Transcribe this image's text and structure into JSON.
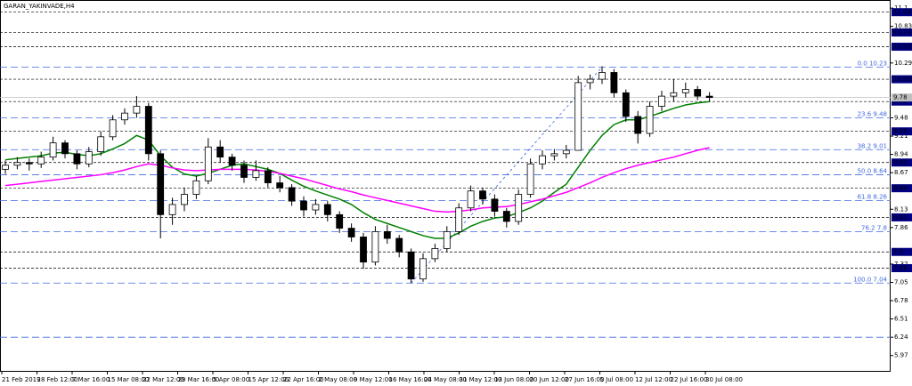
{
  "chart_data": {
    "type": "candlestick",
    "title": "GARAN_YAKINVADE,H4",
    "x_labels": [
      "21 Feb 2019",
      "28 Feb 12:00",
      "7 Mar 16:00",
      "15 Mar 08:00",
      "22 Mar 12:00",
      "29 Mar 16:00",
      "5 Apr 08:00",
      "15 Apr 12:00",
      "22 Apr 16:00",
      "2 May 08:00",
      "9 May 12:00",
      "16 May 16:00",
      "24 May 08:00",
      "31 May 12:00",
      "13 Jun 08:00",
      "20 Jun 12:00",
      "27 Jun 16:00",
      "5 Jul 08:00",
      "12 Jul 12:00",
      "22 Jul 16:00",
      "30 Jul 08:00"
    ],
    "ylim": [
      5.73,
      11.22
    ],
    "yticks": [
      11.1,
      10.83,
      10.29,
      9.48,
      9.21,
      8.94,
      8.67,
      8.13,
      7.86,
      7.32,
      7.05,
      6.78,
      6.51,
      6.24,
      5.97
    ],
    "up_color": "#ffffff",
    "down_color": "#000000",
    "candles": [
      [
        8.72,
        8.85,
        8.65,
        8.78
      ],
      [
        8.78,
        8.9,
        8.72,
        8.82
      ],
      [
        8.82,
        8.88,
        8.7,
        8.8
      ],
      [
        8.8,
        8.98,
        8.74,
        8.9
      ],
      [
        8.9,
        9.2,
        8.85,
        9.11
      ],
      [
        9.11,
        9.15,
        8.88,
        8.95
      ],
      [
        8.95,
        9.0,
        8.72,
        8.8
      ],
      [
        8.8,
        9.05,
        8.75,
        8.98
      ],
      [
        8.98,
        9.28,
        8.92,
        9.2
      ],
      [
        9.2,
        9.52,
        9.15,
        9.45
      ],
      [
        9.45,
        9.62,
        9.38,
        9.55
      ],
      [
        9.55,
        9.8,
        9.48,
        9.65
      ],
      [
        9.65,
        9.7,
        8.85,
        8.95
      ],
      [
        8.95,
        9.0,
        7.7,
        8.05
      ],
      [
        8.05,
        8.3,
        7.9,
        8.2
      ],
      [
        8.2,
        8.45,
        8.1,
        8.35
      ],
      [
        8.35,
        8.62,
        8.28,
        8.55
      ],
      [
        8.55,
        9.18,
        8.5,
        9.05
      ],
      [
        9.05,
        9.15,
        8.82,
        8.9
      ],
      [
        8.9,
        8.95,
        8.7,
        8.78
      ],
      [
        8.78,
        8.85,
        8.52,
        8.6
      ],
      [
        8.6,
        8.85,
        8.55,
        8.7
      ],
      [
        8.7,
        8.75,
        8.45,
        8.52
      ],
      [
        8.52,
        8.62,
        8.38,
        8.45
      ],
      [
        8.45,
        8.5,
        8.18,
        8.25
      ],
      [
        8.25,
        8.32,
        8.02,
        8.12
      ],
      [
        8.12,
        8.28,
        8.05,
        8.2
      ],
      [
        8.2,
        8.25,
        7.95,
        8.05
      ],
      [
        8.05,
        8.1,
        7.78,
        7.85
      ],
      [
        7.85,
        7.92,
        7.65,
        7.72
      ],
      [
        7.72,
        7.78,
        7.25,
        7.35
      ],
      [
        7.35,
        7.88,
        7.3,
        7.8
      ],
      [
        7.8,
        7.9,
        7.62,
        7.7
      ],
      [
        7.7,
        7.75,
        7.42,
        7.5
      ],
      [
        7.5,
        7.55,
        7.04,
        7.1
      ],
      [
        7.1,
        7.48,
        7.06,
        7.4
      ],
      [
        7.4,
        7.62,
        7.35,
        7.55
      ],
      [
        7.55,
        7.88,
        7.5,
        7.8
      ],
      [
        7.8,
        8.22,
        7.75,
        8.15
      ],
      [
        8.15,
        8.48,
        8.1,
        8.4
      ],
      [
        8.4,
        8.45,
        8.2,
        8.28
      ],
      [
        8.28,
        8.35,
        8.02,
        8.1
      ],
      [
        8.1,
        8.15,
        7.86,
        7.95
      ],
      [
        7.95,
        8.42,
        7.9,
        8.35
      ],
      [
        8.35,
        8.88,
        8.3,
        8.8
      ],
      [
        8.8,
        9.0,
        8.72,
        8.92
      ],
      [
        8.92,
        9.02,
        8.85,
        8.95
      ],
      [
        8.95,
        9.08,
        8.88,
        9.0
      ],
      [
        9.0,
        10.1,
        9.0,
        10.0
      ],
      [
        10.0,
        10.12,
        9.9,
        10.05
      ],
      [
        10.05,
        10.24,
        9.98,
        10.15
      ],
      [
        10.15,
        10.2,
        9.78,
        9.85
      ],
      [
        9.85,
        9.9,
        9.42,
        9.5
      ],
      [
        9.5,
        9.58,
        9.1,
        9.25
      ],
      [
        9.25,
        9.72,
        9.2,
        9.65
      ],
      [
        9.65,
        9.88,
        9.58,
        9.8
      ],
      [
        9.8,
        10.05,
        9.72,
        9.85
      ],
      [
        9.85,
        10.0,
        9.78,
        9.9
      ],
      [
        9.9,
        9.95,
        9.74,
        9.8
      ],
      [
        9.8,
        9.86,
        9.72,
        9.78
      ]
    ],
    "series": [
      {
        "color": "#008000",
        "values": [
          8.86,
          8.88,
          8.9,
          8.92,
          8.96,
          8.97,
          8.94,
          8.92,
          8.95,
          9.02,
          9.1,
          9.22,
          9.15,
          8.92,
          8.75,
          8.65,
          8.62,
          8.66,
          8.72,
          8.78,
          8.8,
          8.76,
          8.72,
          8.66,
          8.56,
          8.47,
          8.4,
          8.34,
          8.28,
          8.2,
          8.08,
          7.98,
          7.92,
          7.86,
          7.8,
          7.74,
          7.7,
          7.7,
          7.78,
          7.88,
          7.95,
          8.0,
          8.02,
          8.08,
          8.15,
          8.25,
          8.38,
          8.5,
          8.75,
          9.0,
          9.22,
          9.38,
          9.45,
          9.45,
          9.5,
          9.56,
          9.62,
          9.67,
          9.7,
          9.72
        ]
      },
      {
        "color": "#ff00ff",
        "values": [
          8.48,
          8.5,
          8.52,
          8.54,
          8.56,
          8.58,
          8.6,
          8.62,
          8.64,
          8.67,
          8.71,
          8.76,
          8.8,
          8.78,
          8.74,
          8.71,
          8.7,
          8.71,
          8.72,
          8.72,
          8.72,
          8.71,
          8.69,
          8.66,
          8.62,
          8.58,
          8.53,
          8.48,
          8.43,
          8.39,
          8.34,
          8.3,
          8.26,
          8.22,
          8.18,
          8.14,
          8.1,
          8.09,
          8.1,
          8.12,
          8.15,
          8.16,
          8.17,
          8.2,
          8.24,
          8.28,
          8.33,
          8.38,
          8.45,
          8.52,
          8.6,
          8.67,
          8.73,
          8.78,
          8.82,
          8.86,
          8.9,
          8.95,
          9.0,
          9.04
        ]
      }
    ],
    "levels": [
      11.04,
      10.74,
      10.53,
      10.05,
      9.72,
      9.28,
      8.82,
      8.44,
      8.01,
      7.5,
      7.26
    ],
    "dashed_lines": [
      6.24
    ],
    "bid": 9.78,
    "fibonacci": {
      "color": "#4169e1",
      "levels": [
        {
          "name": "0.0",
          "value": 10.23
        },
        {
          "name": "23.6",
          "value": 9.48
        },
        {
          "name": "38.2",
          "value": 9.01
        },
        {
          "name": "50.0",
          "value": 8.64
        },
        {
          "name": "61.8",
          "value": 8.26
        },
        {
          "name": "76.2",
          "value": 7.8
        },
        {
          "name": "100.0",
          "value": 7.04
        }
      ]
    }
  }
}
